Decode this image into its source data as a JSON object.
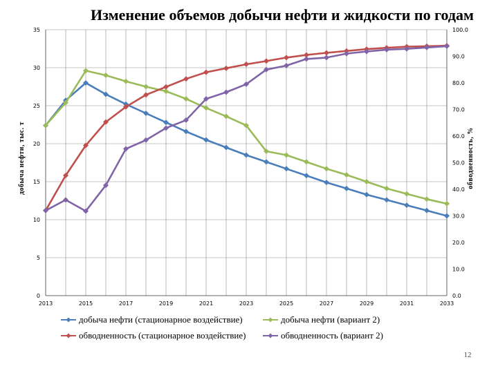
{
  "page_number": "12",
  "chart_data": {
    "type": "line",
    "title": "Изменение объемов добычи нефти и жидкости по годам",
    "ylabel": "добыча нефти, тыс. т",
    "y2label": "обводненность, %",
    "ylim": [
      0,
      35
    ],
    "y2lim": [
      0,
      100
    ],
    "y_ticks": [
      "0",
      "5",
      "10",
      "15",
      "20",
      "25",
      "30",
      "35"
    ],
    "y2_ticks": [
      "0.0",
      "10.0",
      "20.0",
      "30.0",
      "40.0",
      "50.0",
      "60.0",
      "70.0",
      "80.0",
      "90.0",
      "100.0"
    ],
    "x_tick_labels": [
      "2013",
      "2015",
      "2017",
      "2019",
      "2021",
      "2023",
      "2025",
      "2027",
      "2029",
      "2031",
      "2033"
    ],
    "x": [
      2013,
      2014,
      2015,
      2016,
      2017,
      2018,
      2019,
      2020,
      2021,
      2022,
      2023,
      2024,
      2025,
      2026,
      2027,
      2028,
      2029,
      2030,
      2031,
      2032,
      2033
    ],
    "xlim": [
      2013,
      2033
    ],
    "grid": true,
    "legend_position": "bottom",
    "series": [
      {
        "name": "добыча нефти (стационарное воздействие)",
        "axis": "left",
        "color": "#4a7ebb",
        "values": [
          22.4,
          25.7,
          28.0,
          26.5,
          25.2,
          24.0,
          22.8,
          21.6,
          20.5,
          19.5,
          18.5,
          17.6,
          16.7,
          15.8,
          14.9,
          14.1,
          13.3,
          12.6,
          11.9,
          11.2,
          10.5
        ]
      },
      {
        "name": "добыча нефти (вариант 2)",
        "axis": "left",
        "color": "#9bbb59",
        "values": [
          22.4,
          25.4,
          29.6,
          29.0,
          28.2,
          27.5,
          26.9,
          25.9,
          24.7,
          23.6,
          22.4,
          19.0,
          18.5,
          17.6,
          16.7,
          15.9,
          15.0,
          14.1,
          13.4,
          12.7,
          12.1
        ]
      },
      {
        "name": "обводненность (стационарное воздействие)",
        "axis": "right",
        "color": "#c0504d",
        "values": [
          32.0,
          45.2,
          56.5,
          65.3,
          71.0,
          75.5,
          78.5,
          81.5,
          84.0,
          85.5,
          87.0,
          88.2,
          89.5,
          90.5,
          91.3,
          92.0,
          92.7,
          93.2,
          93.6,
          93.8,
          94.0
        ]
      },
      {
        "name": "обводненность (вариант 2)",
        "axis": "right",
        "color": "#7f65a8",
        "values": [
          32.0,
          36.0,
          31.8,
          41.5,
          55.2,
          58.5,
          63.0,
          66.0,
          74.0,
          76.5,
          79.5,
          85.0,
          86.5,
          89.0,
          89.5,
          91.0,
          91.8,
          92.5,
          92.8,
          93.3,
          93.8
        ]
      }
    ]
  }
}
